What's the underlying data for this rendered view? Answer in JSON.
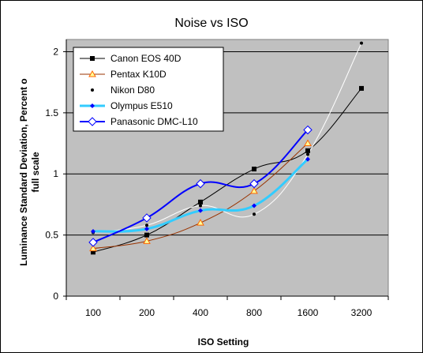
{
  "chart_data": {
    "type": "line",
    "title": "Noise vs ISO",
    "xlabel": "ISO Setting",
    "ylabel_lines": [
      "Luminance Standard Deviation, Percent o",
      "full scale"
    ],
    "categories": [
      "100",
      "200",
      "400",
      "800",
      "1600",
      "3200"
    ],
    "ylim": [
      0,
      2.1
    ],
    "yticks": [
      0,
      0.5,
      1,
      1.5,
      2
    ],
    "ytick_labels": [
      "0",
      "0.5",
      "1",
      "1.5",
      "2"
    ],
    "grid": "horizontal",
    "legend_position": "top-left",
    "plot_background": "#c0c0c0",
    "series": [
      {
        "name": "Canon EOS 40D",
        "values": [
          0.36,
          0.5,
          0.77,
          1.04,
          1.19,
          1.7
        ],
        "color": "#000000",
        "marker": "square",
        "marker_fill": "#000000",
        "line_width": 1
      },
      {
        "name": "Pentax K10D",
        "values": [
          0.39,
          0.45,
          0.6,
          0.86,
          1.25,
          null
        ],
        "color": "#993300",
        "marker": "triangle",
        "marker_fill": "#ffff99",
        "marker_stroke": "#ff6600",
        "line_width": 1
      },
      {
        "name": "Nikon D80",
        "values": [
          0.52,
          0.58,
          0.74,
          0.67,
          1.16,
          2.07
        ],
        "color": "#ffffff",
        "marker": "dot",
        "marker_fill": "#000000",
        "line_width": 1
      },
      {
        "name": "Olympus E510",
        "values": [
          0.53,
          0.55,
          0.7,
          0.74,
          1.12,
          null
        ],
        "color": "#33ccff",
        "marker": "diamond-small",
        "marker_fill": "#0000ff",
        "line_width": 3
      },
      {
        "name": "Panasonic DMC-L10",
        "values": [
          0.44,
          0.64,
          0.92,
          0.92,
          1.36,
          null
        ],
        "color": "#0000ff",
        "marker": "diamond-open",
        "marker_fill": "#ffffff",
        "marker_stroke": "#0000ff",
        "line_width": 2
      }
    ]
  }
}
